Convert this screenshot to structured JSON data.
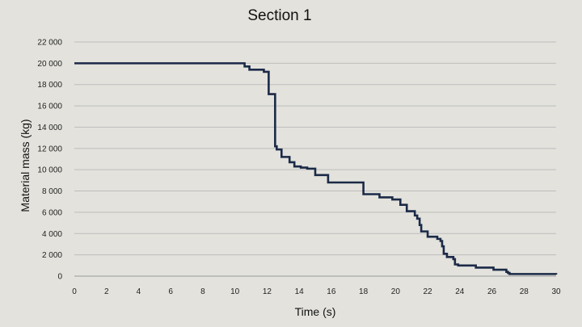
{
  "chart_data": {
    "type": "line",
    "title": "Section 1",
    "xlabel": "Time (s)",
    "ylabel": "Material mass (kg)",
    "xlim": [
      0,
      30
    ],
    "ylim": [
      0,
      22000
    ],
    "x_ticks": [
      0,
      2,
      4,
      6,
      8,
      10,
      12,
      14,
      16,
      18,
      20,
      22,
      24,
      26,
      28,
      30
    ],
    "x_tick_labels": [
      "0",
      "2",
      "4",
      "6",
      "8",
      "10",
      "12",
      "14",
      "16",
      "18",
      "20",
      "22",
      "24",
      "26",
      "28",
      "30"
    ],
    "y_ticks": [
      0,
      2000,
      4000,
      6000,
      8000,
      10000,
      12000,
      14000,
      16000,
      18000,
      20000,
      22000
    ],
    "y_tick_labels": [
      "0",
      "2 000",
      "4 000",
      "6 000",
      "8 000",
      "10 000",
      "12 000",
      "14 000",
      "16 000",
      "18 000",
      "20 000",
      "22 000"
    ],
    "grid": true,
    "legend": "none",
    "step": true,
    "line_color": "#1b2a47",
    "series": [
      {
        "x": [
          0,
          10.6,
          10.9,
          11.8,
          12.1,
          12.5,
          12.6,
          12.9,
          13.4,
          13.7,
          14.1,
          14.5,
          15.0,
          15.8,
          18.0,
          19.0,
          19.8,
          20.3,
          20.7,
          21.2,
          21.35,
          21.5,
          21.6,
          22.0,
          22.6,
          22.8,
          22.9,
          23.0,
          23.2,
          23.6,
          23.7,
          23.9,
          25.0,
          26.1,
          26.9,
          27.0,
          27.1,
          30.0
        ],
        "y": [
          20000,
          19700,
          19400,
          19200,
          17100,
          12200,
          11900,
          11200,
          10700,
          10300,
          10200,
          10100,
          9500,
          8800,
          7700,
          7400,
          7200,
          6700,
          6100,
          5700,
          5400,
          4800,
          4200,
          3700,
          3500,
          3300,
          2800,
          2100,
          1800,
          1600,
          1100,
          1000,
          800,
          600,
          400,
          300,
          200,
          150
        ]
      }
    ]
  }
}
